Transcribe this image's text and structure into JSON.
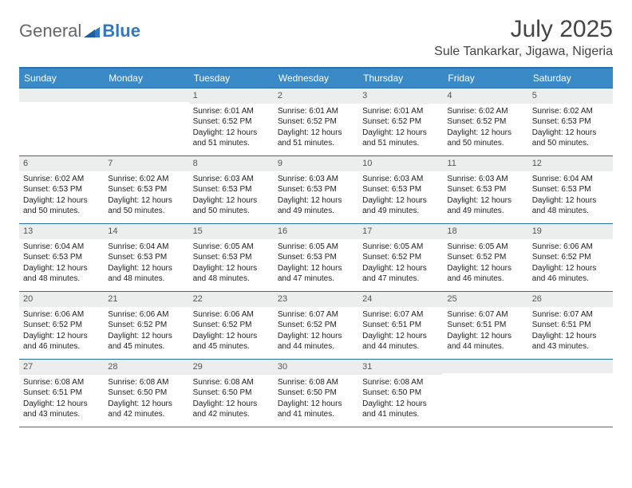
{
  "brand": {
    "part1": "General",
    "part2": "Blue",
    "accent_color": "#2f78c2"
  },
  "title": "July 2025",
  "location": "Sule Tankarkar, Jigawa, Nigeria",
  "colors": {
    "header_bg": "#3a8ac8",
    "header_border": "#2a6fb0",
    "daynum_bg": "#eceded",
    "text": "#222222"
  },
  "day_names": [
    "Sunday",
    "Monday",
    "Tuesday",
    "Wednesday",
    "Thursday",
    "Friday",
    "Saturday"
  ],
  "weeks": [
    [
      {
        "n": "",
        "sr": "",
        "ss": "",
        "dl": ""
      },
      {
        "n": "",
        "sr": "",
        "ss": "",
        "dl": ""
      },
      {
        "n": "1",
        "sr": "6:01 AM",
        "ss": "6:52 PM",
        "dl": "12 hours and 51 minutes."
      },
      {
        "n": "2",
        "sr": "6:01 AM",
        "ss": "6:52 PM",
        "dl": "12 hours and 51 minutes."
      },
      {
        "n": "3",
        "sr": "6:01 AM",
        "ss": "6:52 PM",
        "dl": "12 hours and 51 minutes."
      },
      {
        "n": "4",
        "sr": "6:02 AM",
        "ss": "6:52 PM",
        "dl": "12 hours and 50 minutes."
      },
      {
        "n": "5",
        "sr": "6:02 AM",
        "ss": "6:53 PM",
        "dl": "12 hours and 50 minutes."
      }
    ],
    [
      {
        "n": "6",
        "sr": "6:02 AM",
        "ss": "6:53 PM",
        "dl": "12 hours and 50 minutes."
      },
      {
        "n": "7",
        "sr": "6:02 AM",
        "ss": "6:53 PM",
        "dl": "12 hours and 50 minutes."
      },
      {
        "n": "8",
        "sr": "6:03 AM",
        "ss": "6:53 PM",
        "dl": "12 hours and 50 minutes."
      },
      {
        "n": "9",
        "sr": "6:03 AM",
        "ss": "6:53 PM",
        "dl": "12 hours and 49 minutes."
      },
      {
        "n": "10",
        "sr": "6:03 AM",
        "ss": "6:53 PM",
        "dl": "12 hours and 49 minutes."
      },
      {
        "n": "11",
        "sr": "6:03 AM",
        "ss": "6:53 PM",
        "dl": "12 hours and 49 minutes."
      },
      {
        "n": "12",
        "sr": "6:04 AM",
        "ss": "6:53 PM",
        "dl": "12 hours and 48 minutes."
      }
    ],
    [
      {
        "n": "13",
        "sr": "6:04 AM",
        "ss": "6:53 PM",
        "dl": "12 hours and 48 minutes."
      },
      {
        "n": "14",
        "sr": "6:04 AM",
        "ss": "6:53 PM",
        "dl": "12 hours and 48 minutes."
      },
      {
        "n": "15",
        "sr": "6:05 AM",
        "ss": "6:53 PM",
        "dl": "12 hours and 48 minutes."
      },
      {
        "n": "16",
        "sr": "6:05 AM",
        "ss": "6:53 PM",
        "dl": "12 hours and 47 minutes."
      },
      {
        "n": "17",
        "sr": "6:05 AM",
        "ss": "6:52 PM",
        "dl": "12 hours and 47 minutes."
      },
      {
        "n": "18",
        "sr": "6:05 AM",
        "ss": "6:52 PM",
        "dl": "12 hours and 46 minutes."
      },
      {
        "n": "19",
        "sr": "6:06 AM",
        "ss": "6:52 PM",
        "dl": "12 hours and 46 minutes."
      }
    ],
    [
      {
        "n": "20",
        "sr": "6:06 AM",
        "ss": "6:52 PM",
        "dl": "12 hours and 46 minutes."
      },
      {
        "n": "21",
        "sr": "6:06 AM",
        "ss": "6:52 PM",
        "dl": "12 hours and 45 minutes."
      },
      {
        "n": "22",
        "sr": "6:06 AM",
        "ss": "6:52 PM",
        "dl": "12 hours and 45 minutes."
      },
      {
        "n": "23",
        "sr": "6:07 AM",
        "ss": "6:52 PM",
        "dl": "12 hours and 44 minutes."
      },
      {
        "n": "24",
        "sr": "6:07 AM",
        "ss": "6:51 PM",
        "dl": "12 hours and 44 minutes."
      },
      {
        "n": "25",
        "sr": "6:07 AM",
        "ss": "6:51 PM",
        "dl": "12 hours and 44 minutes."
      },
      {
        "n": "26",
        "sr": "6:07 AM",
        "ss": "6:51 PM",
        "dl": "12 hours and 43 minutes."
      }
    ],
    [
      {
        "n": "27",
        "sr": "6:08 AM",
        "ss": "6:51 PM",
        "dl": "12 hours and 43 minutes."
      },
      {
        "n": "28",
        "sr": "6:08 AM",
        "ss": "6:50 PM",
        "dl": "12 hours and 42 minutes."
      },
      {
        "n": "29",
        "sr": "6:08 AM",
        "ss": "6:50 PM",
        "dl": "12 hours and 42 minutes."
      },
      {
        "n": "30",
        "sr": "6:08 AM",
        "ss": "6:50 PM",
        "dl": "12 hours and 41 minutes."
      },
      {
        "n": "31",
        "sr": "6:08 AM",
        "ss": "6:50 PM",
        "dl": "12 hours and 41 minutes."
      },
      {
        "n": "",
        "sr": "",
        "ss": "",
        "dl": ""
      },
      {
        "n": "",
        "sr": "",
        "ss": "",
        "dl": ""
      }
    ]
  ],
  "labels": {
    "sunrise": "Sunrise: ",
    "sunset": "Sunset: ",
    "daylight": "Daylight: "
  }
}
